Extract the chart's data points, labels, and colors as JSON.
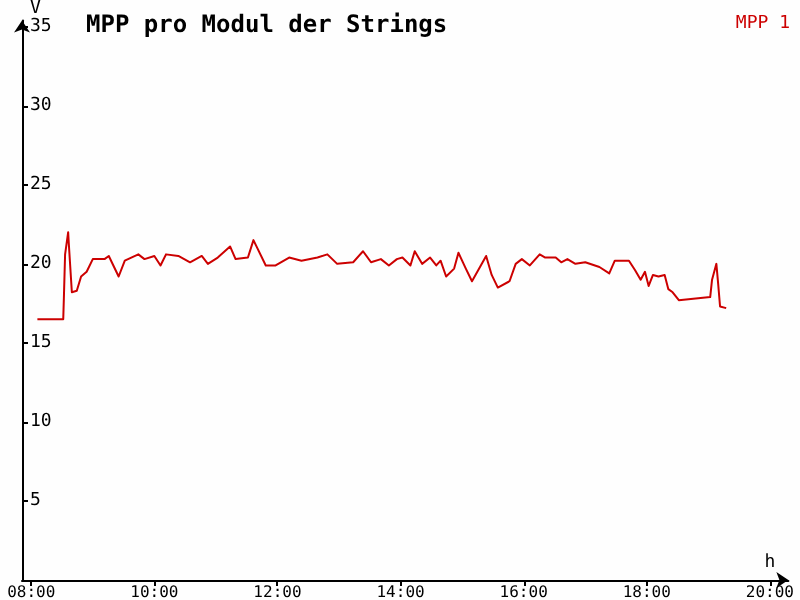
{
  "chart_data": {
    "type": "line",
    "title": "MPP pro Modul der Strings",
    "xlabel": "h",
    "ylabel": "V",
    "legend": "top right",
    "grid": false,
    "marker": "none",
    "line_style": "solid",
    "xlim": [
      7.85,
      20.3
    ],
    "ylim": [
      0,
      35.4
    ],
    "xticks": [
      {
        "value": 8,
        "label": "08:00"
      },
      {
        "value": 10,
        "label": "10:00"
      },
      {
        "value": 12,
        "label": "12:00"
      },
      {
        "value": 14,
        "label": "14:00"
      },
      {
        "value": 16,
        "label": "16:00"
      },
      {
        "value": 18,
        "label": "18:00"
      },
      {
        "value": 20,
        "label": "20:00"
      }
    ],
    "yticks": [
      5,
      10,
      15,
      20,
      25,
      30,
      35
    ],
    "series": [
      {
        "name": "MPP 1",
        "color": "#cc0000",
        "x": [
          8.1,
          8.52,
          8.53,
          8.55,
          8.6,
          8.61,
          8.66,
          8.74,
          8.81,
          8.9,
          9.0,
          9.19,
          9.26,
          9.42,
          9.52,
          9.74,
          9.84,
          10.0,
          10.1,
          10.19,
          10.39,
          10.58,
          10.77,
          10.87,
          11.03,
          11.23,
          11.32,
          11.52,
          11.61,
          11.81,
          11.97,
          12.19,
          12.39,
          12.65,
          12.81,
          12.97,
          13.23,
          13.39,
          13.52,
          13.68,
          13.81,
          13.94,
          14.03,
          14.16,
          14.23,
          14.35,
          14.48,
          14.58,
          14.65,
          14.74,
          14.87,
          14.94,
          15.06,
          15.16,
          15.29,
          15.39,
          15.48,
          15.58,
          15.77,
          15.87,
          15.97,
          16.1,
          16.26,
          16.35,
          16.52,
          16.61,
          16.71,
          16.84,
          17.0,
          17.23,
          17.39,
          17.48,
          17.71,
          17.81,
          17.9,
          17.97,
          18.03,
          18.1,
          18.19,
          18.29,
          18.35,
          18.42,
          18.52,
          19.03,
          19.06,
          19.13,
          19.16,
          19.19,
          19.29
        ],
        "values": [
          16.5,
          16.5,
          17.8,
          20.6,
          22.0,
          21.3,
          18.2,
          18.3,
          19.2,
          19.5,
          20.3,
          20.3,
          20.5,
          19.2,
          20.2,
          20.6,
          20.3,
          20.5,
          19.9,
          20.6,
          20.5,
          20.1,
          20.5,
          20.0,
          20.4,
          21.1,
          20.3,
          20.4,
          21.5,
          19.9,
          19.9,
          20.4,
          20.2,
          20.4,
          20.6,
          20.0,
          20.1,
          20.8,
          20.1,
          20.3,
          19.9,
          20.3,
          20.4,
          19.9,
          20.8,
          20.0,
          20.4,
          19.9,
          20.2,
          19.2,
          19.7,
          20.7,
          19.7,
          18.9,
          19.8,
          20.5,
          19.3,
          18.5,
          18.9,
          20.0,
          20.3,
          19.9,
          20.6,
          20.4,
          20.4,
          20.1,
          20.3,
          20.0,
          20.1,
          19.8,
          19.4,
          20.2,
          20.2,
          19.6,
          19.0,
          19.5,
          18.6,
          19.3,
          19.2,
          19.3,
          18.4,
          18.2,
          17.7,
          17.9,
          19.0,
          20.0,
          18.7,
          17.3,
          17.2
        ]
      }
    ]
  }
}
